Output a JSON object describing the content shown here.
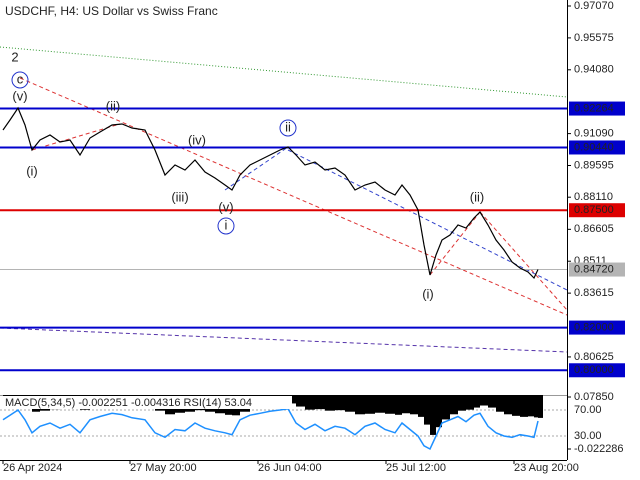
{
  "chart_data": [
    {
      "type": "line",
      "title": "USDCHF, H4:  US Dollar vs Swiss Franc",
      "x": [
        3,
        10,
        18,
        25,
        32,
        40,
        50,
        60,
        70,
        80,
        90,
        100,
        112,
        122,
        132,
        145,
        155,
        165,
        175,
        185,
        195,
        205,
        215,
        225,
        232,
        240,
        250,
        260,
        270,
        280,
        288,
        296,
        305,
        315,
        325,
        335,
        345,
        355,
        365,
        375,
        385,
        395,
        402,
        410,
        418,
        424,
        430,
        436,
        442,
        450,
        458,
        466,
        474,
        480,
        488,
        496,
        504,
        512,
        520,
        528,
        534,
        538
      ],
      "values": [
        0.91259,
        0.91728,
        0.9229,
        0.91494,
        0.90322,
        0.90791,
        0.91025,
        0.90697,
        0.90791,
        0.90088,
        0.90884,
        0.91166,
        0.91494,
        0.9154,
        0.91353,
        0.91259,
        0.90322,
        0.89151,
        0.89619,
        0.89385,
        0.89854,
        0.89291,
        0.8901,
        0.88682,
        0.88448,
        0.89151,
        0.89619,
        0.89854,
        0.90088,
        0.90322,
        0.90463,
        0.90088,
        0.89619,
        0.8976,
        0.89385,
        0.89479,
        0.89151,
        0.88448,
        0.88682,
        0.88823,
        0.88448,
        0.88213,
        0.88682,
        0.88213,
        0.8751,
        0.8587,
        0.84465,
        0.85402,
        0.86105,
        0.86339,
        0.86808,
        0.86667,
        0.87136,
        0.87417,
        0.86808,
        0.86105,
        0.85636,
        0.85074,
        0.84793,
        0.84605,
        0.84324,
        0.8472
      ],
      "color": "#000000",
      "xlim": [
        0,
        567
      ],
      "xticks": [
        {
          "value": 3,
          "label": "26 Apr 2024"
        },
        {
          "value": 130,
          "label": "27 May 20:00"
        },
        {
          "value": 258,
          "label": "26 Jun 04:00"
        },
        {
          "value": 386,
          "label": "25 Jul 12:00"
        },
        {
          "value": 514,
          "label": "23 Aug 20:00"
        }
      ],
      "ylim": [
        0.78841,
        0.97351
      ],
      "yticks": [
        {
          "value": 0.9707,
          "label": "0.97070"
        },
        0.95575,
        {
          "value": 0.9408,
          "label": "0.94080"
        },
        {
          "value": 0.9109,
          "label": "0.91090"
        },
        0.89595,
        {
          "value": 0.8811,
          "label": "0.88110"
        },
        0.86605,
        0.8511,
        0.83615,
        0.80625
      ],
      "levels": [
        {
          "value": 0.92264,
          "color": "#0000cc"
        },
        {
          "value": 0.9044,
          "label": "0.90440",
          "color": "#0000cc"
        },
        {
          "value": 0.875,
          "label": "0.87500",
          "color": "#dd0000"
        },
        {
          "value": 0.8472,
          "label": "0.84720",
          "color": "#b4b4b4"
        },
        {
          "value": 0.82,
          "label": "0.82000",
          "color": "#0000cc"
        },
        {
          "value": 0.8,
          "label": "0.80000",
          "color": "#0000cc"
        }
      ],
      "trendlines": [
        {
          "x": [
            0,
            567
          ],
          "y": [
            0.95149,
            0.92806
          ],
          "color": "#339933",
          "style": "dotted"
        },
        {
          "x": [
            20,
            567
          ],
          "y": [
            0.93696,
            0.8259
          ],
          "color": "#dd3333",
          "style": "dashed"
        },
        {
          "x": [
            288,
            567
          ],
          "y": [
            0.90322,
            0.83762
          ],
          "color": "#3344cc",
          "style": "dashed"
        },
        {
          "x": [
            430,
            480
          ],
          "y": [
            0.84465,
            0.87417
          ],
          "color": "#dd3333",
          "style": "dashed"
        },
        {
          "x": [
            480,
            567
          ],
          "y": [
            0.87417,
            0.82824
          ],
          "color": "#dd3333",
          "style": "dashed"
        },
        {
          "x": [
            0,
            567
          ],
          "y": [
            0.81981,
            0.80856
          ],
          "color": "#5533aa",
          "style": "dashed"
        },
        {
          "x": [
            225,
            288
          ],
          "y": [
            0.88448,
            0.90463
          ],
          "color": "#3344cc",
          "style": "dashed"
        },
        {
          "x": [
            32,
            120
          ],
          "y": [
            0.90322,
            0.9154
          ],
          "color": "#dd3333",
          "style": "dashed"
        }
      ],
      "annotations": [
        {
          "text": "2",
          "x": 15,
          "y": 0.94633,
          "color": "#cc2222",
          "circled": false
        },
        {
          "text": "c",
          "x": 20,
          "y": 0.93602,
          "color": "#2233cc",
          "circled": true
        },
        {
          "text": "(v)",
          "x": 20,
          "y": 0.92806,
          "color": "#cc2222",
          "circled": false
        },
        {
          "text": "(i)",
          "x": 32,
          "y": 0.89291,
          "color": "#cc2222",
          "circled": false
        },
        {
          "text": "(ii)",
          "x": 113,
          "y": 0.92337,
          "color": "#cc2222",
          "circled": false
        },
        {
          "text": "(iii)",
          "x": 180,
          "y": 0.88073,
          "color": "#cc2222",
          "circled": false
        },
        {
          "text": "(iv)",
          "x": 197,
          "y": 0.90744,
          "color": "#cc2222",
          "circled": false
        },
        {
          "text": "(v)",
          "x": 226,
          "y": 0.87604,
          "color": "#cc2222",
          "circled": false
        },
        {
          "text": "i",
          "x": 226,
          "y": 0.86761,
          "color": "#2233cc",
          "circled": true
        },
        {
          "text": "ii",
          "x": 288,
          "y": 0.91353,
          "color": "#2233cc",
          "circled": true
        },
        {
          "text": "(i)",
          "x": 428,
          "y": 0.83527,
          "color": "#cc2222",
          "circled": false
        },
        {
          "text": "(ii)",
          "x": 477,
          "y": 0.88073,
          "color": "#cc2222",
          "circled": false
        }
      ]
    },
    {
      "type": "indicator",
      "title": "MACD(5,34,5) -0.002251 -0.004316 RSI(14) 53.04",
      "histogram": [
        0.06,
        0.062,
        0.064,
        0.058,
        0.05,
        0.052,
        0.055,
        0.057,
        0.058,
        0.054,
        0.06,
        0.063,
        0.065,
        0.066,
        0.064,
        0.062,
        0.052,
        0.045,
        0.048,
        0.05,
        0.053,
        0.05,
        0.047,
        0.044,
        0.043,
        0.05,
        0.056,
        0.06,
        0.063,
        0.065,
        0.066,
        0.06,
        0.054,
        0.055,
        0.052,
        0.053,
        0.05,
        0.045,
        0.046,
        0.048,
        0.046,
        0.044,
        0.047,
        0.045,
        0.04,
        0.025,
        0.005,
        0.02,
        0.035,
        0.045,
        0.052,
        0.054,
        0.058,
        0.062,
        0.058,
        0.05,
        0.045,
        0.042,
        0.04,
        0.041,
        0.039,
        0.038
      ],
      "histogram_color": "#000000",
      "rsi": [
        55,
        62,
        70,
        55,
        35,
        45,
        50,
        42,
        48,
        35,
        55,
        60,
        65,
        63,
        58,
        55,
        35,
        28,
        40,
        38,
        50,
        42,
        38,
        35,
        32,
        55,
        62,
        65,
        68,
        70,
        72,
        50,
        40,
        48,
        38,
        45,
        42,
        32,
        45,
        50,
        40,
        35,
        50,
        40,
        30,
        15,
        10,
        30,
        50,
        55,
        60,
        52,
        62,
        65,
        45,
        35,
        30,
        28,
        32,
        30,
        28,
        53.04
      ],
      "rsi_color": "#1e90ff",
      "ylim": [
        -0.0436,
        0.0824
      ],
      "yticks": [
        {
          "value": 0.0785,
          "label": "0.07850"
        },
        -0.022286
      ],
      "y2lim": [
        -6.9,
        93.1
      ],
      "y2ticks": [
        {
          "value": 70,
          "label": "70.00"
        },
        {
          "value": 30,
          "label": "30.00"
        }
      ]
    }
  ]
}
